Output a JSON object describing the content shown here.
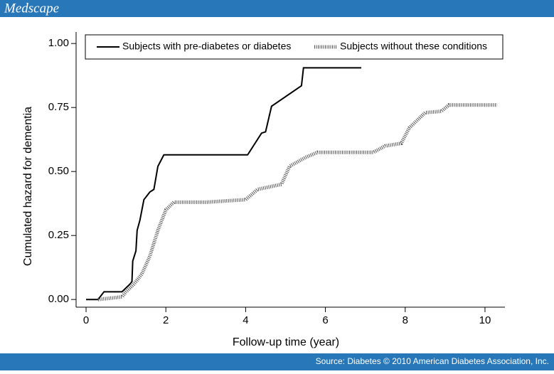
{
  "brand": "Medscape",
  "source": "Source: Diabetes © 2010 American Diabetes Association, Inc.",
  "chart_data": {
    "type": "line",
    "xlabel": "Follow-up time (year)",
    "ylabel": "Cumulated hazard for dementia",
    "xlim": [
      -0.25,
      10.5
    ],
    "xticks": [
      0,
      2,
      4,
      6,
      8,
      10
    ],
    "ylim": [
      -0.03,
      1.045
    ],
    "yticks": [
      {
        "value": 0,
        "label": "0.00"
      },
      {
        "value": 0.25,
        "label": "0.25"
      },
      {
        "value": 0.5,
        "label": "0.50"
      },
      {
        "value": 0.75,
        "label": "0.75"
      },
      {
        "value": 1,
        "label": "1.00"
      }
    ],
    "legend": "top",
    "series": [
      {
        "name": "Subjects with pre-diabetes or diabetes",
        "color": "#000000",
        "style": "solid",
        "x": [
          0,
          0.3,
          0.45,
          0.9,
          1.1,
          1.15,
          1.17,
          1.25,
          1.28,
          1.35,
          1.4,
          1.45,
          1.6,
          1.7,
          1.8,
          1.95,
          4.05,
          4.4,
          4.5,
          4.65,
          5.4,
          5.45,
          6.9
        ],
        "values": [
          0,
          0,
          0.03,
          0.03,
          0.06,
          0.07,
          0.15,
          0.19,
          0.27,
          0.31,
          0.35,
          0.39,
          0.42,
          0.43,
          0.52,
          0.565,
          0.565,
          0.65,
          0.655,
          0.755,
          0.835,
          0.905,
          0.905
        ]
      },
      {
        "name": "Subjects without these conditions",
        "color": "#555555",
        "style": "dotted",
        "x": [
          0.3,
          0.9,
          1.0,
          1.2,
          1.4,
          1.6,
          1.8,
          2.0,
          2.2,
          3.0,
          4.0,
          4.3,
          4.9,
          5.1,
          5.5,
          5.8,
          7.2,
          7.5,
          7.9,
          8.1,
          8.5,
          8.9,
          9.1,
          10.3
        ],
        "values": [
          0,
          0.01,
          0.03,
          0.06,
          0.1,
          0.17,
          0.27,
          0.35,
          0.38,
          0.38,
          0.39,
          0.43,
          0.45,
          0.52,
          0.555,
          0.575,
          0.575,
          0.6,
          0.61,
          0.67,
          0.73,
          0.735,
          0.76,
          0.76
        ]
      }
    ]
  }
}
